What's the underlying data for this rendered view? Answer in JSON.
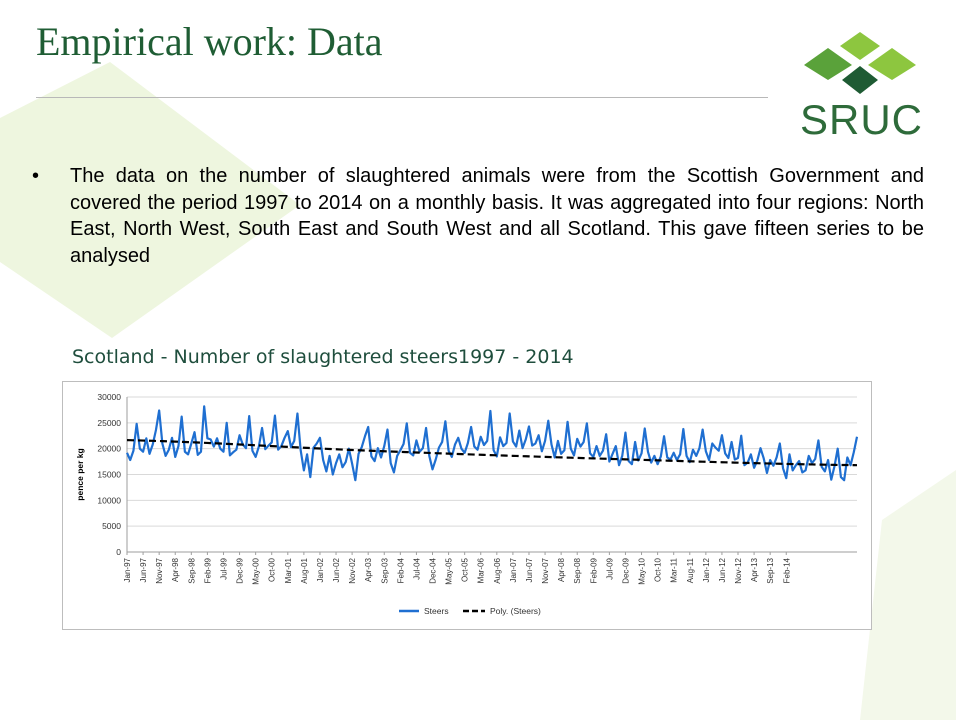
{
  "slide": {
    "title": "Empirical work: Data",
    "logo_text": "SRUC",
    "bullet": "The data on the number of slaughtered animals were from the Scottish Government and covered the period 1997 to 2014 on a monthly basis. It was aggregated into four regions: North East, North West, South East and South West and all Scotland. This gave fifteen series to be analysed",
    "chart_heading": "Scotland - Number of slaughtered steers1997 - 2014"
  },
  "colors": {
    "title": "#1f5d34",
    "logo_light": "#8dc63f",
    "logo_mid": "#5aa23a",
    "logo_dark": "#1e5b33",
    "series": "#1f6fd1",
    "trend": "#000000",
    "grid": "#d9d9d9",
    "bg_shape": "#eef6df"
  },
  "chart_data": {
    "type": "line",
    "title": "",
    "xlabel": "",
    "ylabel": "pence per kg",
    "ylim": [
      0,
      30000
    ],
    "yticks": [
      0,
      5000,
      10000,
      15000,
      20000,
      25000,
      30000
    ],
    "ytick_labels": [
      "0",
      "5000",
      "10000",
      "15000",
      "20000",
      "25000",
      "30000"
    ],
    "grid": true,
    "legend_position": "bottom",
    "x_start_label": "Jan-97",
    "x_tick_labels": [
      "Jan-97",
      "Jun-97",
      "Nov-97",
      "Apr-98",
      "Sep-98",
      "Feb-99",
      "Jul-99",
      "Dec-99",
      "May-00",
      "Oct-00",
      "Mar-01",
      "Aug-01",
      "Jan-02",
      "Jun-02",
      "Nov-02",
      "Apr-03",
      "Sep-03",
      "Feb-04",
      "Jul-04",
      "Dec-04",
      "May-05",
      "Oct-05",
      "Mar-06",
      "Aug-06",
      "Jan-07",
      "Jun-07",
      "Nov-07",
      "Apr-08",
      "Sep-08",
      "Feb-09",
      "Jul-09",
      "Dec-09",
      "May-10",
      "Oct-10",
      "Mar-11",
      "Aug-11",
      "Jan-12",
      "Jun-12",
      "Nov-12",
      "Apr-13",
      "Sep-13",
      "Feb-14"
    ],
    "series": [
      {
        "name": "Steers",
        "style": "solid",
        "values": [
          19200,
          17800,
          19600,
          24800,
          20000,
          19400,
          22000,
          19000,
          20800,
          23600,
          27400,
          21000,
          18600,
          19800,
          22100,
          18400,
          20500,
          26200,
          19400,
          18900,
          21000,
          23200,
          18800,
          19400,
          28200,
          22000,
          21800,
          20400,
          22000,
          20000,
          19400,
          25000,
          18700,
          19300,
          19800,
          22600,
          20800,
          20100,
          26300,
          19600,
          18400,
          20400,
          24000,
          19900,
          20600,
          21200,
          26400,
          19800,
          20500,
          22100,
          23400,
          20300,
          21500,
          26800,
          19700,
          15800,
          18900,
          14500,
          20200,
          21000,
          22100,
          17800,
          15600,
          18600,
          15000,
          17200,
          18900,
          16400,
          17400,
          20000,
          17100,
          13900,
          19000,
          20300,
          22400,
          24200,
          18500,
          17600,
          20100,
          18300,
          20500,
          23700,
          17200,
          15400,
          18600,
          19700,
          20900,
          24900,
          19200,
          18700,
          21600,
          19400,
          20100,
          24000,
          18600,
          16000,
          17900,
          20200,
          21300,
          25300,
          19600,
          18400,
          20800,
          22100,
          20000,
          19200,
          21100,
          24200,
          20400,
          19800,
          22300,
          20700,
          21500,
          27300,
          19700,
          18500,
          22200,
          20500,
          21100,
          26800,
          21400,
          20400,
          23500,
          20100,
          21800,
          24300,
          20600,
          21000,
          22600,
          19500,
          21500,
          25400,
          20800,
          18300,
          21500,
          19000,
          19700,
          25200,
          20000,
          18700,
          21900,
          20400,
          21300,
          24900,
          19100,
          18400,
          20500,
          18600,
          19600,
          22800,
          17500,
          19000,
          20500,
          16800,
          18600,
          23100,
          17600,
          17000,
          21300,
          17700,
          19100,
          23900,
          19400,
          17300,
          18600,
          17000,
          18500,
          22400,
          18300,
          17900,
          19200,
          17800,
          18900,
          23800,
          18600,
          17400,
          19800,
          18600,
          20100,
          23700,
          19500,
          17800,
          21000,
          20200,
          19600,
          22600,
          19100,
          18200,
          21300,
          17900,
          18200,
          22500,
          16800,
          17300,
          18900,
          16300,
          17700,
          20100,
          18100,
          15300,
          17800,
          16700,
          18300,
          21000,
          16200,
          14300,
          18900,
          15800,
          16800,
          17600,
          15400,
          15800,
          18600,
          17200,
          18000,
          21600,
          16500,
          15600,
          17800,
          14000,
          16600,
          20000,
          14500,
          13900,
          18300,
          16800,
          19300,
          22300
        ]
      },
      {
        "name": "Poly. (Steers)",
        "style": "dashed",
        "values": [
          21650,
          19600,
          18000,
          16800
        ]
      }
    ]
  }
}
